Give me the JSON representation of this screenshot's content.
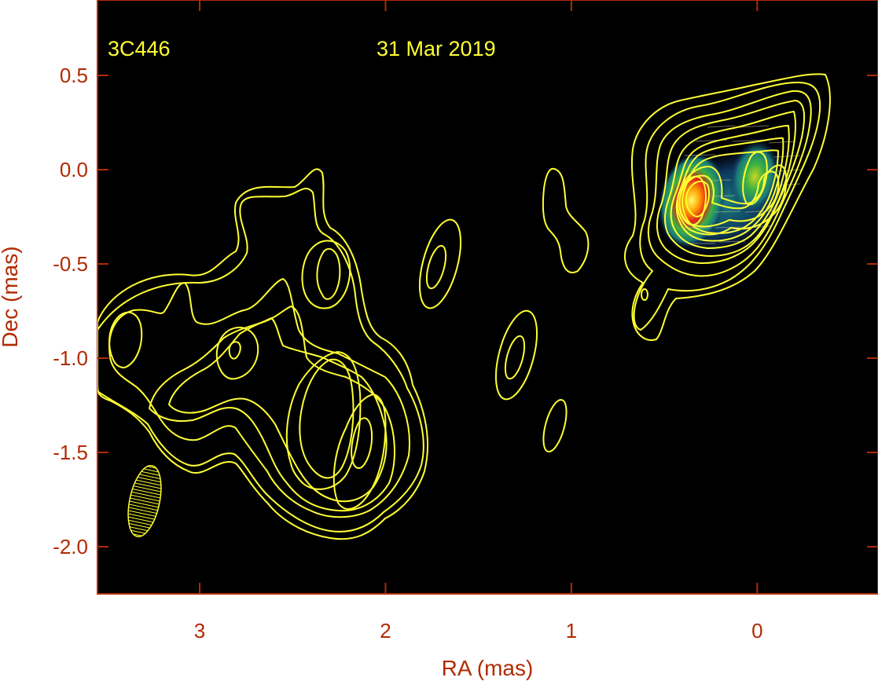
{
  "chart_data": {
    "type": "contour",
    "source_name": "3C446",
    "date": "31 Mar 2019",
    "xlabel": "RA (mas)",
    "ylabel": "Dec (mas)",
    "x_axis_reversed": true,
    "xlim": [
      3.55,
      -0.65
    ],
    "ylim": [
      -2.25,
      0.9
    ],
    "x_ticks": [
      3,
      2,
      1,
      0
    ],
    "y_ticks": [
      0.5,
      0.0,
      -0.5,
      -1.0,
      -1.5,
      -2.0
    ],
    "x_tick_labels": [
      "3",
      "2",
      "1",
      "0"
    ],
    "y_tick_labels": [
      "0.5",
      "0.0",
      "-0.5",
      "-1.0",
      "-1.5",
      "-2.0"
    ],
    "contour_color": "#ffff33",
    "colorscale": [
      "#0a1a4a",
      "#1a7a7a",
      "#3cb043",
      "#c8d820",
      "#ff8c00",
      "#e0201a",
      "#ffff60"
    ],
    "intensity_peaks": [
      {
        "label": "core",
        "ra": 0.37,
        "dec": -0.13,
        "intensity": "highest (red/yellow)"
      },
      {
        "label": "component",
        "ra": 0.02,
        "dec": 0.03,
        "intensity": "moderate (green)"
      }
    ],
    "beam": {
      "ra": 3.33,
      "dec": -1.73,
      "shape": "hatched ellipse"
    }
  }
}
